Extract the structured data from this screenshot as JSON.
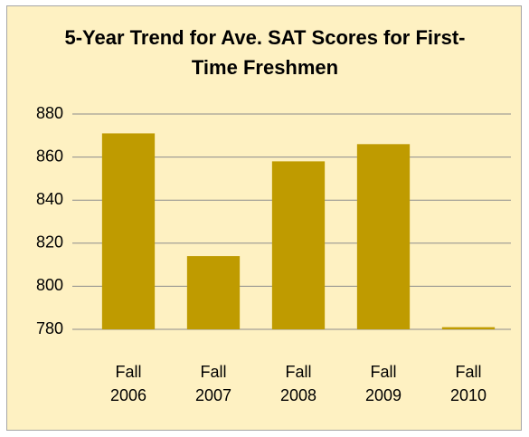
{
  "chart_data": {
    "type": "bar",
    "title": "5-Year Trend for Ave. SAT Scores for First-Time Freshmen",
    "categories": [
      "Fall 2006",
      "Fall 2007",
      "Fall 2008",
      "Fall 2009",
      "Fall 2010"
    ],
    "values": [
      871,
      814,
      858,
      866,
      781
    ],
    "color": "#bf9b00",
    "ylim": [
      780,
      880
    ],
    "yticks": [
      780,
      800,
      820,
      840,
      860,
      880
    ],
    "grid": true
  }
}
